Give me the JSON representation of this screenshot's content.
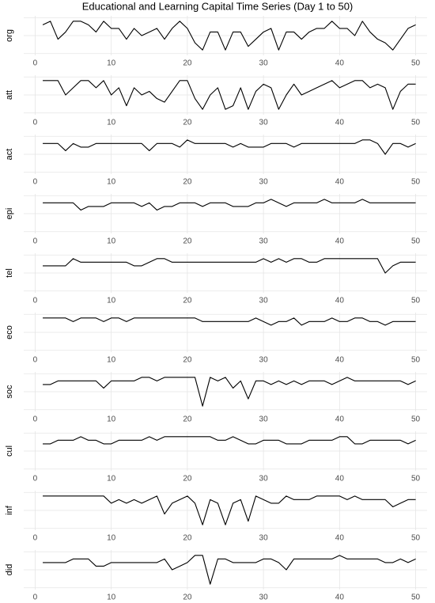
{
  "chart_data": {
    "type": "line",
    "title": "Educational and Learning Capital Time Series (Day 1 to 50)",
    "x": [
      1,
      2,
      3,
      4,
      5,
      6,
      7,
      8,
      9,
      10,
      11,
      12,
      13,
      14,
      15,
      16,
      17,
      18,
      19,
      20,
      21,
      22,
      23,
      24,
      25,
      26,
      27,
      28,
      29,
      30,
      31,
      32,
      33,
      34,
      35,
      36,
      37,
      38,
      39,
      40,
      41,
      42,
      43,
      44,
      45,
      46,
      47,
      48,
      49,
      50
    ],
    "xlim": [
      -1.5,
      51.5
    ],
    "xticks": [
      0,
      10,
      20,
      30,
      40,
      50
    ],
    "ylim": [
      -0.5,
      10.5
    ],
    "yticks": [
      0,
      5,
      10
    ],
    "grid": true,
    "series": [
      {
        "name": "org",
        "color": "#000000",
        "values": [
          8,
          9,
          4,
          6,
          9,
          9,
          8,
          6,
          9,
          7,
          7,
          4,
          7,
          5,
          6,
          7,
          4,
          7,
          9,
          7,
          3,
          1,
          6,
          6,
          1,
          6,
          6,
          2,
          4,
          6,
          7,
          1,
          6,
          6,
          4,
          6,
          7,
          7,
          9,
          7,
          7,
          5,
          9,
          6,
          4,
          3,
          1,
          4,
          7,
          8
        ]
      },
      {
        "name": "att",
        "color": "#000000",
        "values": [
          9,
          9,
          9,
          5,
          7,
          9,
          9,
          7,
          9,
          5,
          7,
          2,
          7,
          5,
          6,
          4,
          3,
          6,
          9,
          9,
          4,
          1,
          5,
          7,
          1,
          2,
          7,
          1,
          6,
          8,
          7,
          1,
          5,
          8,
          5,
          6,
          7,
          8,
          9,
          7,
          8,
          9,
          9,
          7,
          8,
          7,
          1,
          6,
          8,
          8
        ]
      },
      {
        "name": "act",
        "color": "#000000",
        "values": [
          8,
          8,
          8,
          6,
          8,
          7,
          7,
          8,
          8,
          8,
          8,
          8,
          8,
          8,
          6,
          8,
          8,
          8,
          7,
          9,
          8,
          8,
          8,
          8,
          8,
          7,
          8,
          7,
          7,
          7,
          8,
          8,
          8,
          7,
          8,
          8,
          8,
          8,
          8,
          8,
          8,
          8,
          9,
          9,
          8,
          5,
          8,
          8,
          7,
          8
        ]
      },
      {
        "name": "epi",
        "color": "#000000",
        "values": [
          8,
          8,
          8,
          8,
          8,
          6,
          7,
          7,
          7,
          8,
          8,
          8,
          8,
          7,
          8,
          6,
          7,
          7,
          8,
          8,
          8,
          7,
          8,
          8,
          8,
          7,
          7,
          7,
          8,
          8,
          9,
          8,
          7,
          8,
          8,
          8,
          8,
          9,
          8,
          8,
          8,
          8,
          9,
          8,
          8,
          8,
          8,
          8,
          8,
          8
        ]
      },
      {
        "name": "tel",
        "color": "#000000",
        "values": [
          7,
          7,
          7,
          7,
          9,
          8,
          8,
          8,
          8,
          8,
          8,
          8,
          7,
          7,
          8,
          9,
          9,
          8,
          8,
          8,
          8,
          8,
          8,
          8,
          8,
          8,
          8,
          8,
          8,
          9,
          8,
          9,
          8,
          9,
          9,
          8,
          8,
          9,
          9,
          9,
          9,
          9,
          9,
          9,
          9,
          5,
          7,
          8,
          8,
          8
        ]
      },
      {
        "name": "eco",
        "color": "#000000",
        "values": [
          9,
          9,
          9,
          9,
          8,
          9,
          9,
          9,
          8,
          9,
          9,
          8,
          9,
          9,
          9,
          9,
          9,
          9,
          9,
          9,
          9,
          8,
          8,
          8,
          8,
          8,
          8,
          8,
          9,
          8,
          7,
          8,
          8,
          9,
          7,
          8,
          8,
          8,
          9,
          8,
          8,
          9,
          9,
          8,
          8,
          7,
          8,
          8,
          8,
          8
        ]
      },
      {
        "name": "soc",
        "color": "#000000",
        "values": [
          7,
          7,
          8,
          8,
          8,
          8,
          8,
          8,
          6,
          8,
          8,
          8,
          8,
          9,
          9,
          8,
          9,
          9,
          9,
          9,
          9,
          1,
          9,
          8,
          9,
          6,
          8,
          3,
          8,
          8,
          7,
          8,
          7,
          8,
          7,
          8,
          8,
          8,
          7,
          8,
          9,
          8,
          8,
          8,
          8,
          8,
          8,
          8,
          7,
          8
        ]
      },
      {
        "name": "cul",
        "color": "#000000",
        "values": [
          7,
          7,
          8,
          8,
          8,
          9,
          8,
          8,
          7,
          7,
          8,
          8,
          8,
          8,
          9,
          8,
          9,
          9,
          9,
          9,
          9,
          9,
          9,
          8,
          8,
          9,
          8,
          7,
          7,
          8,
          8,
          8,
          7,
          7,
          7,
          8,
          8,
          8,
          8,
          9,
          9,
          7,
          7,
          8,
          8,
          8,
          8,
          8,
          7,
          8
        ]
      },
      {
        "name": "inf",
        "color": "#000000",
        "values": [
          9,
          9,
          9,
          9,
          9,
          9,
          9,
          9,
          9,
          7,
          8,
          7,
          8,
          7,
          8,
          9,
          4,
          7,
          8,
          9,
          7,
          1,
          8,
          7,
          1,
          7,
          8,
          2,
          9,
          8,
          7,
          7,
          9,
          8,
          8,
          8,
          9,
          9,
          9,
          9,
          8,
          9,
          8,
          8,
          8,
          8,
          6,
          7,
          8,
          8
        ]
      },
      {
        "name": "did",
        "color": "#000000",
        "values": [
          7,
          7,
          7,
          7,
          8,
          8,
          8,
          6,
          6,
          7,
          7,
          7,
          7,
          7,
          7,
          7,
          8,
          5,
          6,
          7,
          9,
          9,
          1,
          8,
          8,
          7,
          7,
          7,
          7,
          8,
          8,
          7,
          5,
          8,
          8,
          8,
          8,
          8,
          8,
          9,
          8,
          8,
          8,
          8,
          8,
          7,
          7,
          8,
          7,
          8
        ]
      }
    ]
  }
}
